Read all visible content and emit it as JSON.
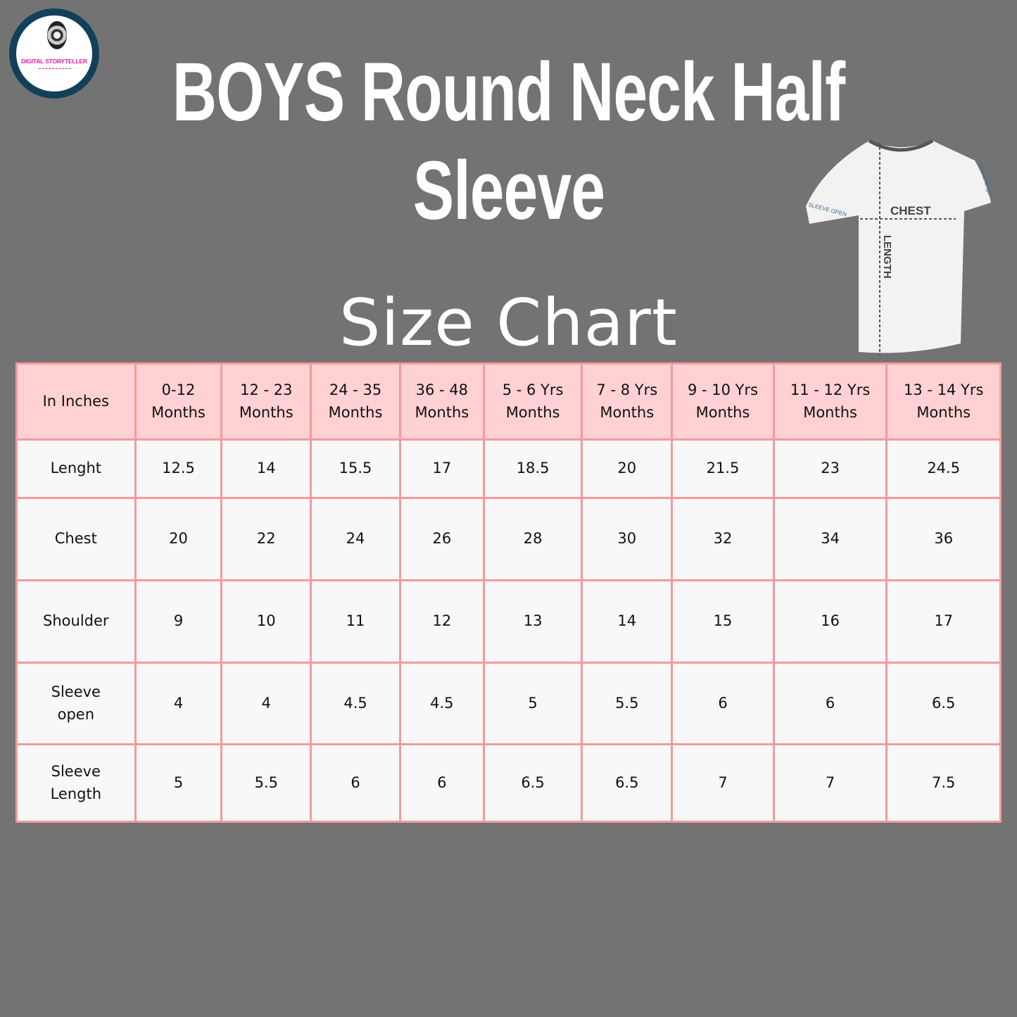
{
  "logo": {
    "text": "DIGITAL STORYTELLER"
  },
  "title": {
    "line1": "BOYS Round Neck Half",
    "line2": "Sleeve"
  },
  "subtitle": "Size Chart",
  "diagram": {
    "labels": [
      "CHEST",
      "LENGTH",
      "SLEEVE OPEN",
      "Sleeve length"
    ]
  },
  "colors": {
    "background": "#737373",
    "header": "#ffd1d3",
    "border": "#f49a9c",
    "cell": "#f8f8f8",
    "logo_ring": "#12405a",
    "logo_text": "#e0209c"
  },
  "table": {
    "headers": [
      [
        "In Inches"
      ],
      [
        "0-12",
        "Months"
      ],
      [
        "12 - 23",
        "Months"
      ],
      [
        "24 - 35",
        "Months"
      ],
      [
        "36 - 48",
        "Months"
      ],
      [
        "5 - 6 Yrs",
        "Months"
      ],
      [
        "7 - 8 Yrs",
        "Months"
      ],
      [
        "9 - 10 Yrs",
        "Months"
      ],
      [
        "11 - 12  Yrs",
        "Months"
      ],
      [
        "13 - 14 Yrs",
        "Months"
      ]
    ],
    "rows": [
      {
        "label": [
          "Lenght"
        ],
        "values": [
          "12.5",
          "14",
          "15.5",
          "17",
          "18.5",
          "20",
          "21.5",
          "23",
          "24.5"
        ]
      },
      {
        "label": [
          "Chest"
        ],
        "values": [
          "20",
          "22",
          "24",
          "26",
          "28",
          "30",
          "32",
          "34",
          "36"
        ]
      },
      {
        "label": [
          "Shoulder"
        ],
        "values": [
          "9",
          "10",
          "11",
          "12",
          "13",
          "14",
          "15",
          "16",
          "17"
        ]
      },
      {
        "label": [
          "Sleeve",
          "open"
        ],
        "values": [
          "4",
          "4",
          "4.5",
          "4.5",
          "5",
          "5.5",
          "6",
          "6",
          "6.5"
        ]
      },
      {
        "label": [
          "Sleeve",
          "Length"
        ],
        "values": [
          "5",
          "5.5",
          "6",
          "6",
          "6.5",
          "6.5",
          "7",
          "7",
          "7.5"
        ]
      }
    ]
  }
}
